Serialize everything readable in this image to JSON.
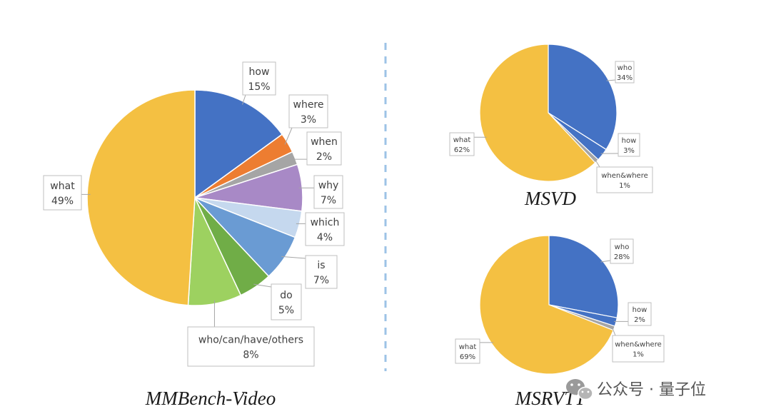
{
  "chart_data": [
    {
      "type": "pie",
      "title": "MMBench-Video",
      "slices": [
        {
          "label": "how",
          "value": 15,
          "pct_text": "15%"
        },
        {
          "label": "where",
          "value": 3,
          "pct_text": "3%"
        },
        {
          "label": "when",
          "value": 2,
          "pct_text": "2%"
        },
        {
          "label": "why",
          "value": 7,
          "pct_text": "7%"
        },
        {
          "label": "which",
          "value": 4,
          "pct_text": "4%"
        },
        {
          "label": "is",
          "value": 7,
          "pct_text": "7%"
        },
        {
          "label": "do",
          "value": 5,
          "pct_text": "5%"
        },
        {
          "label": "who/can/have/others",
          "value": 8,
          "pct_text": "8%"
        },
        {
          "label": "what",
          "value": 49,
          "pct_text": "49%"
        }
      ]
    },
    {
      "type": "pie",
      "title": "MSVD",
      "slices": [
        {
          "label": "who",
          "value": 34,
          "pct_text": "34%"
        },
        {
          "label": "how",
          "value": 3,
          "pct_text": "3%"
        },
        {
          "label": "when&where",
          "value": 1,
          "pct_text": "1%"
        },
        {
          "label": "what",
          "value": 62,
          "pct_text": "62%"
        }
      ]
    },
    {
      "type": "pie",
      "title": "MSRVTT",
      "slices": [
        {
          "label": "who",
          "value": 28,
          "pct_text": "28%"
        },
        {
          "label": "how",
          "value": 2,
          "pct_text": "2%"
        },
        {
          "label": "when&where",
          "value": 1,
          "pct_text": "1%"
        },
        {
          "label": "what",
          "value": 69,
          "pct_text": "69%"
        }
      ]
    }
  ],
  "colors": {
    "how": "#4472c4",
    "where": "#ed7d31",
    "when": "#a5a5a5",
    "why": "#a889c6",
    "which": "#c5d8ee",
    "is": "#6a9bd3",
    "do": "#70ad47",
    "who/can/have/others": "#9dd160",
    "what": "#f4c042",
    "who": "#4472c4",
    "when&where": "#a5a5a5",
    "divider": "#9dc3e6"
  },
  "watermark": {
    "icon": "wechat-icon",
    "text": "公众号 · 量子位"
  }
}
